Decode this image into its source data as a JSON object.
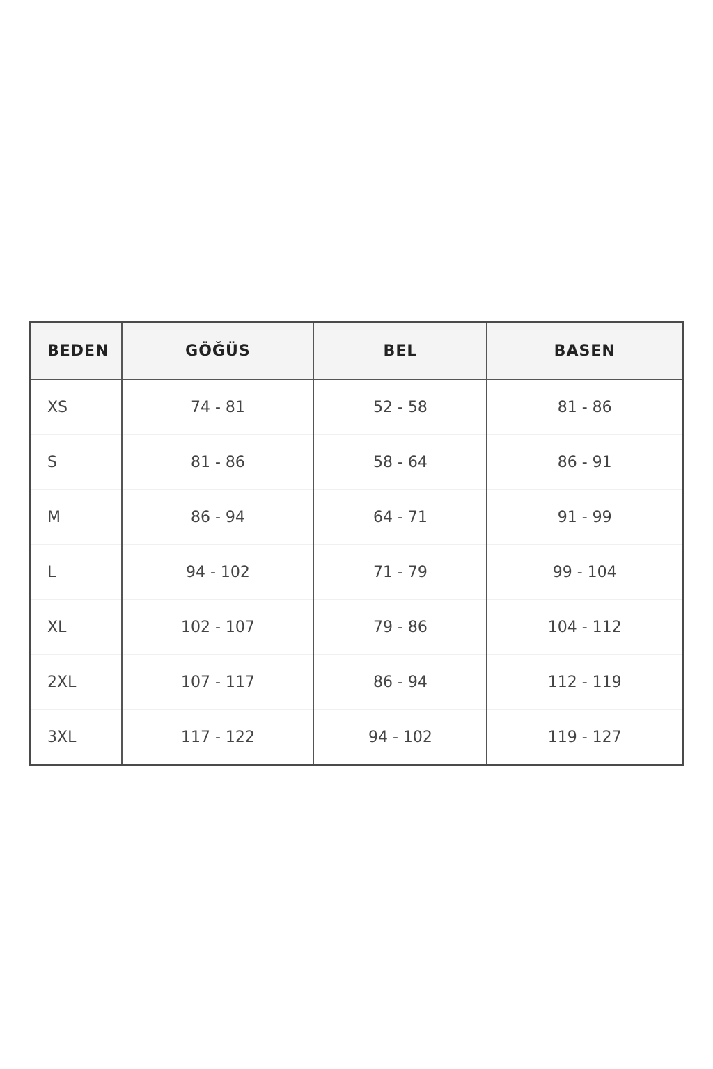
{
  "table": {
    "headers": [
      "BEDEN",
      "GÖĞÜS",
      "BEL",
      "BASEN"
    ],
    "rows": [
      [
        "XS",
        "74 - 81",
        "52 - 58",
        "81 - 86"
      ],
      [
        "S",
        "81 - 86",
        "58 - 64",
        "86 - 91"
      ],
      [
        "M",
        "86 - 94",
        "64 - 71",
        "91 - 99"
      ],
      [
        "L",
        "94 - 102",
        "71 - 79",
        "99 - 104"
      ],
      [
        "XL",
        "102 - 107",
        "79 - 86",
        "104 - 112"
      ],
      [
        "2XL",
        "107 - 117",
        "86 - 94",
        "112 - 119"
      ],
      [
        "3XL",
        "117 - 122",
        "94 - 102",
        "119 - 127"
      ]
    ]
  }
}
